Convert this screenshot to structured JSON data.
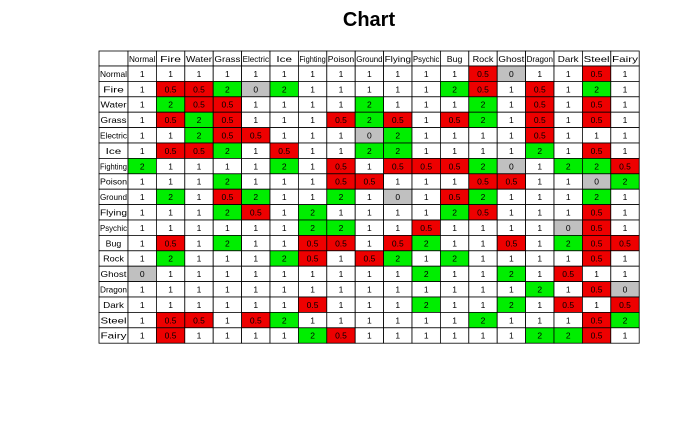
{
  "chart_data": {
    "type": "heatmap",
    "title": "Chart",
    "xlabel": "",
    "ylabel": "",
    "columns": [
      "Normal",
      "Fire",
      "Water",
      "Grass",
      "Electric",
      "Ice",
      "Fighting",
      "Poison",
      "Ground",
      "Flying",
      "Psychic",
      "Bug",
      "Rock",
      "Ghost",
      "Dragon",
      "Dark",
      "Steel",
      "Fairy"
    ],
    "rows": [
      "Normal",
      "Fire",
      "Water",
      "Grass",
      "Electric",
      "Ice",
      "Fighting",
      "Poison",
      "Ground",
      "Flying",
      "Psychic",
      "Bug",
      "Rock",
      "Ghost",
      "Dragon",
      "Dark",
      "Steel",
      "Fairy"
    ],
    "values": [
      [
        1,
        1,
        1,
        1,
        1,
        1,
        1,
        1,
        1,
        1,
        1,
        1,
        0.5,
        0,
        1,
        1,
        0.5,
        1
      ],
      [
        1,
        0.5,
        0.5,
        2,
        0,
        2,
        1,
        1,
        1,
        1,
        1,
        2,
        0.5,
        1,
        0.5,
        1,
        2,
        1
      ],
      [
        1,
        2,
        0.5,
        0.5,
        1,
        1,
        1,
        1,
        2,
        1,
        1,
        1,
        2,
        1,
        0.5,
        1,
        0.5,
        1
      ],
      [
        1,
        0.5,
        2,
        0.5,
        1,
        1,
        1,
        0.5,
        2,
        0.5,
        1,
        0.5,
        2,
        1,
        0.5,
        1,
        0.5,
        1
      ],
      [
        1,
        1,
        2,
        0.5,
        0.5,
        1,
        1,
        1,
        0,
        2,
        1,
        1,
        1,
        1,
        0.5,
        1,
        1,
        1
      ],
      [
        1,
        0.5,
        0.5,
        2,
        1,
        0.5,
        1,
        1,
        2,
        2,
        1,
        1,
        1,
        1,
        2,
        1,
        0.5,
        1
      ],
      [
        2,
        1,
        1,
        1,
        1,
        2,
        1,
        0.5,
        1,
        0.5,
        0.5,
        0.5,
        2,
        0,
        1,
        2,
        2,
        0.5
      ],
      [
        1,
        1,
        1,
        2,
        1,
        1,
        1,
        0.5,
        0.5,
        1,
        1,
        1,
        0.5,
        0.5,
        1,
        1,
        0,
        2
      ],
      [
        1,
        2,
        1,
        0.5,
        2,
        1,
        1,
        2,
        1,
        0,
        1,
        0.5,
        2,
        1,
        1,
        1,
        2,
        1
      ],
      [
        1,
        1,
        1,
        2,
        0.5,
        1,
        2,
        1,
        1,
        1,
        1,
        2,
        0.5,
        1,
        1,
        1,
        0.5,
        1
      ],
      [
        1,
        1,
        1,
        1,
        1,
        1,
        2,
        2,
        1,
        1,
        0.5,
        1,
        1,
        1,
        1,
        0,
        0.5,
        1
      ],
      [
        1,
        0.5,
        1,
        2,
        1,
        1,
        0.5,
        0.5,
        1,
        0.5,
        2,
        1,
        1,
        0.5,
        1,
        2,
        0.5,
        0.5
      ],
      [
        1,
        2,
        1,
        1,
        1,
        2,
        0.5,
        1,
        0.5,
        2,
        1,
        2,
        1,
        1,
        1,
        1,
        0.5,
        1
      ],
      [
        0,
        1,
        1,
        1,
        1,
        1,
        1,
        1,
        1,
        1,
        2,
        1,
        1,
        2,
        1,
        0.5,
        1,
        1
      ],
      [
        1,
        1,
        1,
        1,
        1,
        1,
        1,
        1,
        1,
        1,
        1,
        1,
        1,
        1,
        2,
        1,
        0.5,
        0
      ],
      [
        1,
        1,
        1,
        1,
        1,
        1,
        0.5,
        1,
        1,
        1,
        2,
        1,
        1,
        2,
        1,
        0.5,
        1,
        0.5
      ],
      [
        1,
        0.5,
        0.5,
        1,
        0.5,
        2,
        1,
        1,
        1,
        1,
        1,
        1,
        2,
        1,
        1,
        1,
        0.5,
        2
      ],
      [
        1,
        0.5,
        1,
        1,
        1,
        1,
        2,
        0.5,
        1,
        1,
        1,
        1,
        1,
        1,
        2,
        2,
        0.5,
        1
      ]
    ],
    "value_colors": {
      "2": "#00ee00",
      "0.5": "#ee0000",
      "0": "#c0c0c0",
      "1": "#ffffff"
    },
    "grid": true,
    "legend": "none"
  }
}
